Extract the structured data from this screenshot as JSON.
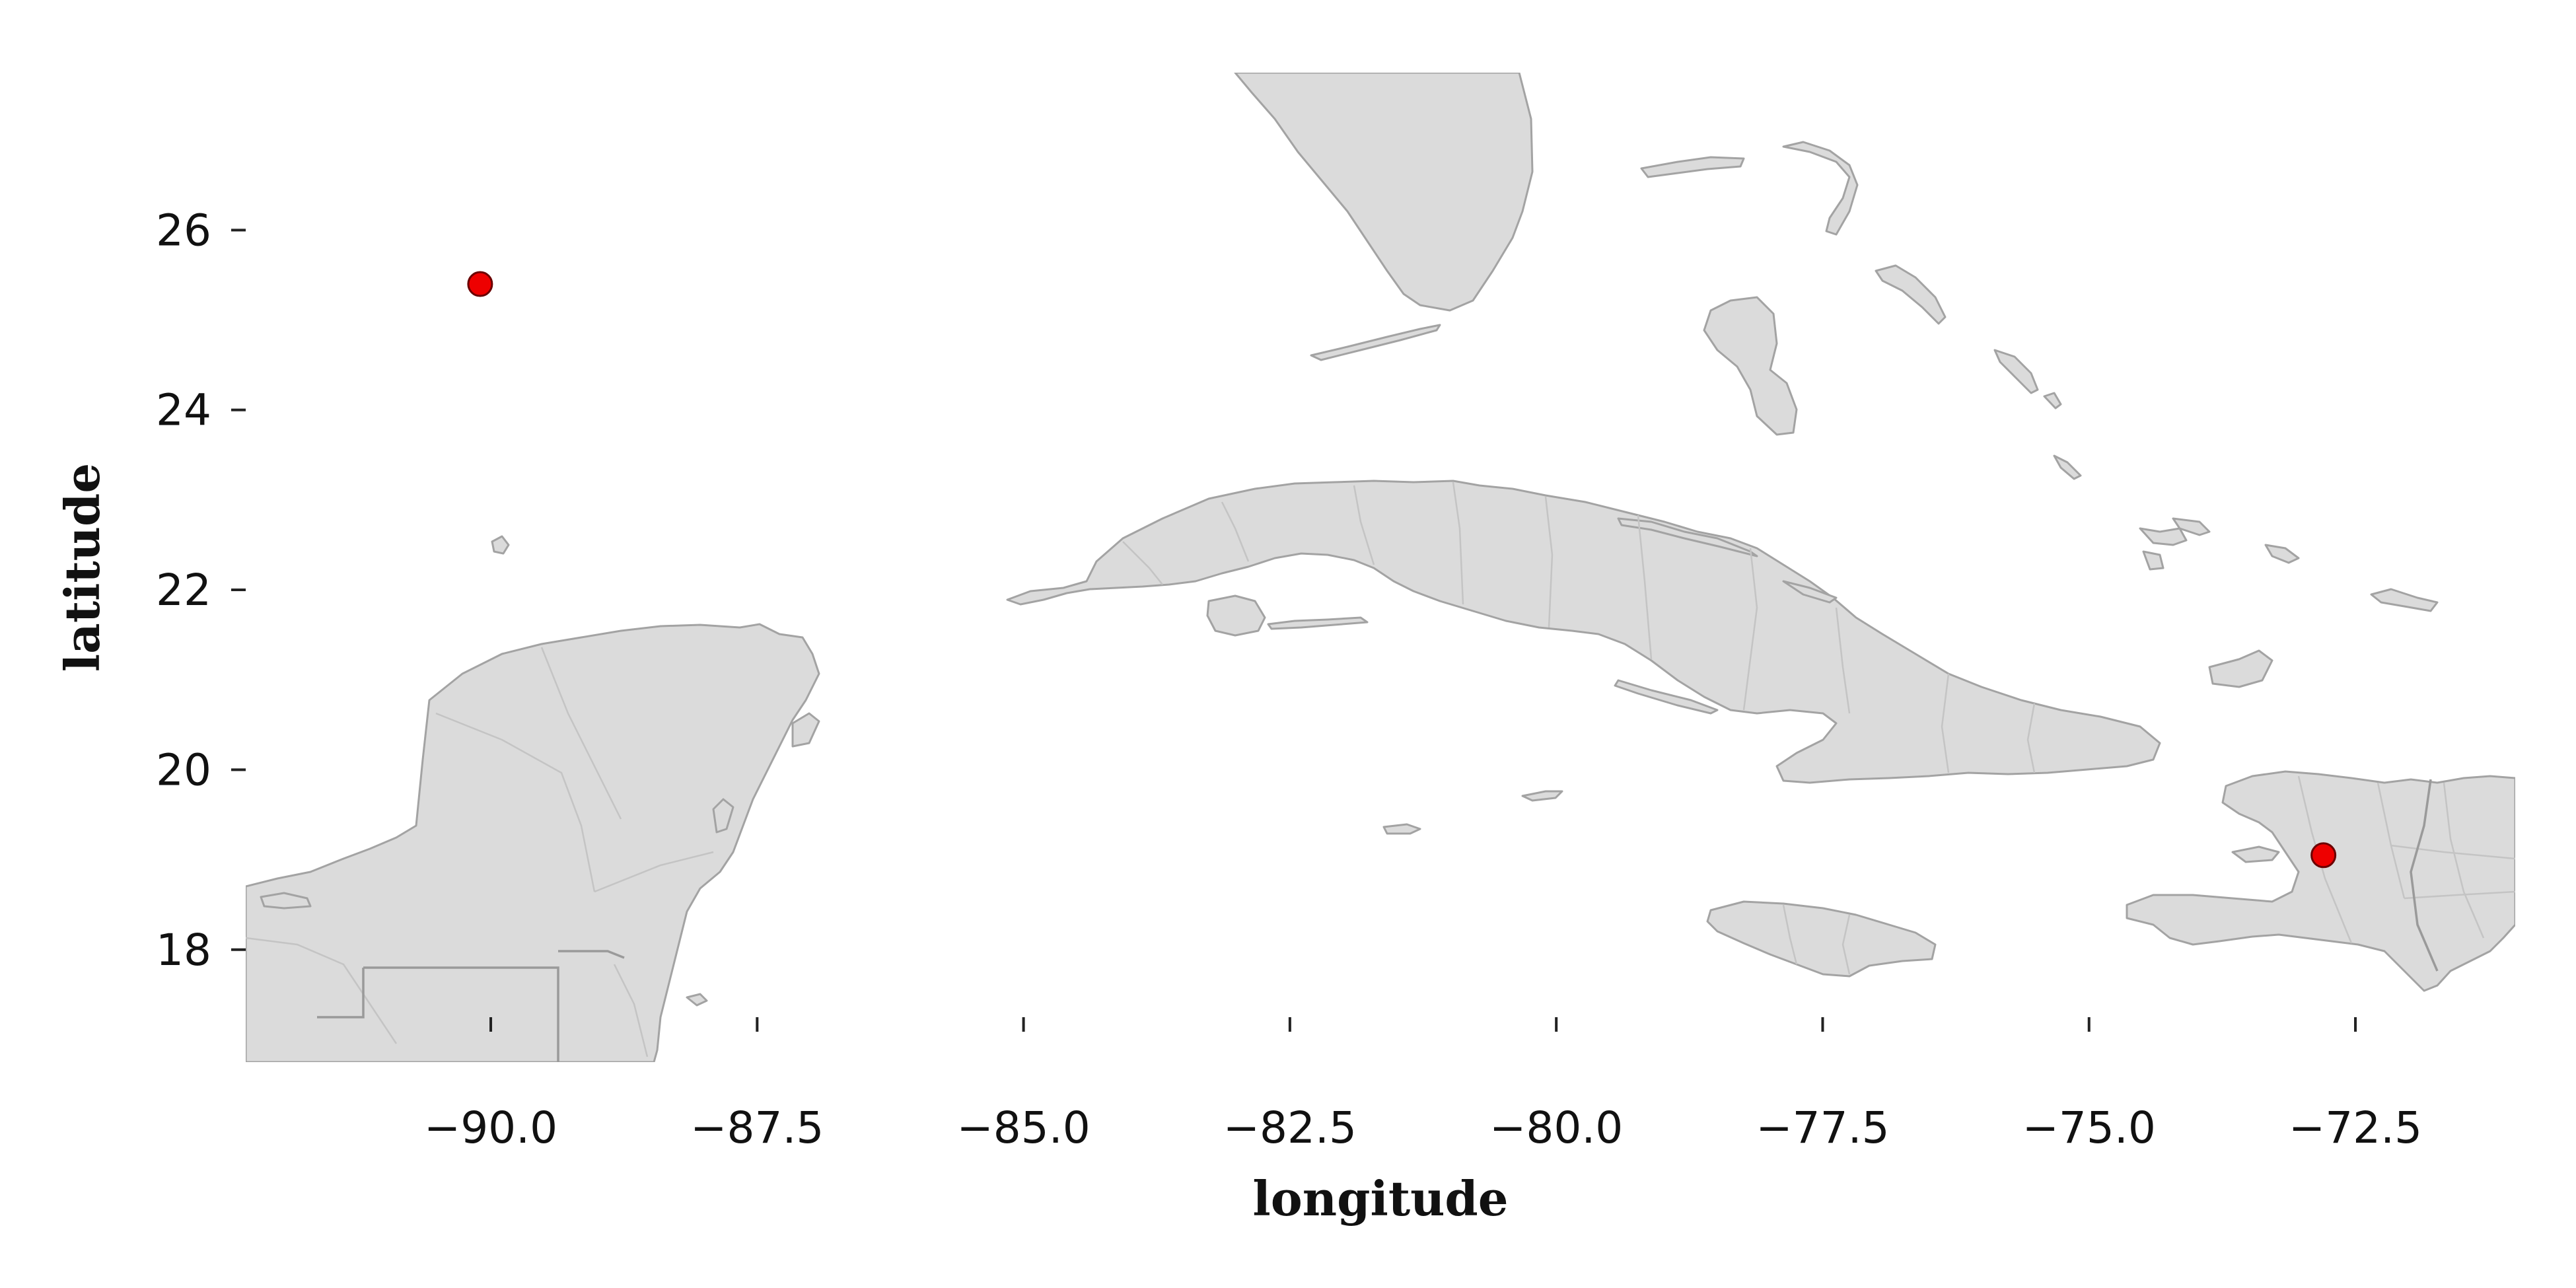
{
  "chart_data": {
    "type": "scatter",
    "title": "",
    "xlabel": "longitude",
    "ylabel": "latitude",
    "xlim": [
      -92.3,
      -71.0
    ],
    "ylim": [
      16.75,
      27.75
    ],
    "xticks": [
      -90.0,
      -87.5,
      -85.0,
      -82.5,
      -80.0,
      -77.5,
      -75.0,
      -72.5
    ],
    "xtick_labels": [
      "−90.0",
      "−87.5",
      "−85.0",
      "−82.5",
      "−80.0",
      "−77.5",
      "−75.0",
      "−72.5"
    ],
    "yticks": [
      18,
      20,
      22,
      24,
      26
    ],
    "ytick_labels": [
      "18",
      "20",
      "22",
      "24",
      "26"
    ],
    "grid": false,
    "basemap": "Caribbean land with province borders (Florida, Bahamas, Cuba, Yucatan, Jamaica, Hispaniola)",
    "points": [
      {
        "lon": -90.1,
        "lat": 25.4
      },
      {
        "lon": -72.8,
        "lat": 19.05
      }
    ],
    "point_color": "#ee0000",
    "land_color": "#dbdbdb",
    "coast_color": "#a3a3a3"
  }
}
